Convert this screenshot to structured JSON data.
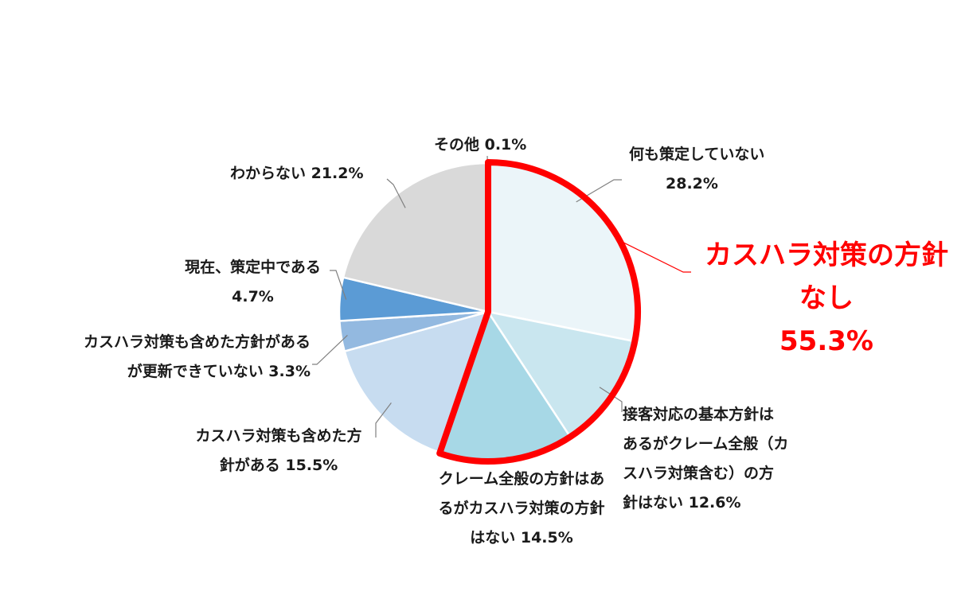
{
  "chart_data": {
    "type": "pie",
    "start_angle_deg": 0,
    "direction": "clockwise",
    "slices": [
      {
        "lines": [
          "何も策定していない",
          "28.2%"
        ],
        "value": 28.2,
        "color": "#ebf5f9"
      },
      {
        "lines": [
          "接客対応の基本方針は",
          "あるがクレーム全般（カ",
          "スハラ対策含む）の方",
          "針はない 12.6%"
        ],
        "value": 12.6,
        "color": "#c9e6ef"
      },
      {
        "lines": [
          "クレーム全般の方針はあ",
          "るがカスハラ対策の方針",
          "はない 14.5%"
        ],
        "value": 14.5,
        "color": "#a7d8e6"
      },
      {
        "lines": [
          "カスハラ対策も含めた方",
          "針がある 15.5%"
        ],
        "value": 15.5,
        "color": "#c7dcf0"
      },
      {
        "lines": [
          "カスハラ対策も含めた方針がある",
          "が更新できていない 3.3%"
        ],
        "value": 3.3,
        "color": "#93b9e0"
      },
      {
        "lines": [
          "現在、策定中である",
          "4.7%"
        ],
        "value": 4.7,
        "color": "#5b9bd5"
      },
      {
        "lines": [
          "わからない 21.2%"
        ],
        "value": 21.2,
        "color": "#d9d9d9"
      },
      {
        "lines": [
          "その他 0.1%"
        ],
        "value": 0.1,
        "color": "#bfbfbf"
      }
    ],
    "highlight": {
      "lines": [
        "カスハラ対策の方針",
        "なし",
        "55.3%"
      ],
      "value": 55.3,
      "covers_slices": [
        0,
        1,
        2
      ],
      "color": "#ff0000"
    },
    "legend": "none"
  }
}
